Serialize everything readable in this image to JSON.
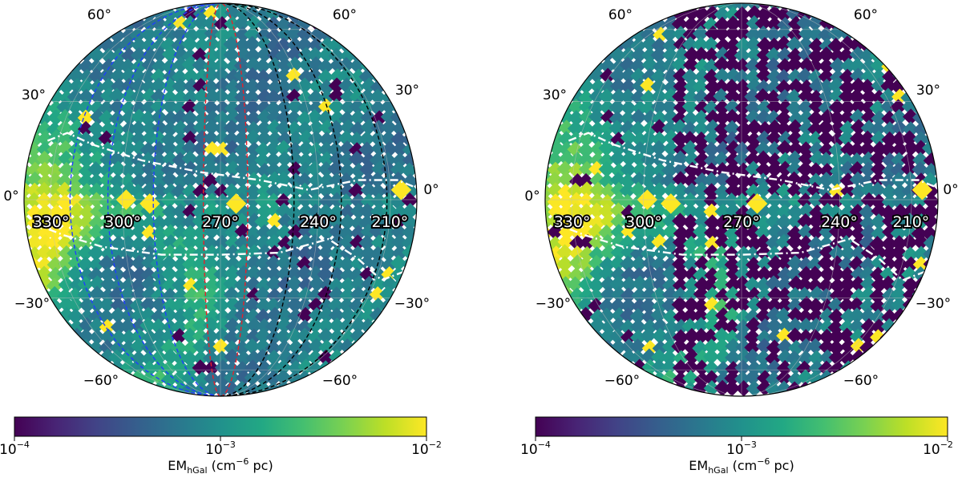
{
  "panels": [
    {
      "id": "left",
      "lat_labels": {
        "p60": "60°",
        "p30": "30°",
        "z": "0°",
        "m30": "−30°",
        "m60": "−60°"
      },
      "lon_labels": [
        "330°",
        "300°",
        "270°",
        "240°",
        "210°"
      ],
      "has_meridians": true,
      "zero_fraction": 0.05,
      "colorbar": {
        "ticks": [
          "10",
          "10",
          "10"
        ],
        "exponents": [
          "−4",
          "−3",
          "−2"
        ],
        "label_main": "EM",
        "label_sub": "hGal",
        "label_units_a": " (cm",
        "label_units_sup": "−6",
        "label_units_b": " pc)"
      }
    },
    {
      "id": "right",
      "lat_labels": {
        "p60": "60°",
        "p30": "30°",
        "z": "0°",
        "m30": "−30°",
        "m60": "−60°"
      },
      "lon_labels": [
        "330°",
        "300°",
        "270°",
        "240°",
        "210°"
      ],
      "has_meridians": false,
      "zero_fraction": 0.5,
      "colorbar": {
        "ticks": [
          "10",
          "10",
          "10"
        ],
        "exponents": [
          "−4",
          "−3",
          "−2"
        ],
        "label_main": "EM",
        "label_sub": "hGal",
        "label_units_a": " (cm",
        "label_units_sup": "−6",
        "label_units_b": " pc)"
      }
    }
  ],
  "colormap": "viridis",
  "colormap_range": [
    "1e-4",
    "1e-2"
  ],
  "colors": {
    "meridian_blue": "#1f3fff",
    "meridian_red": "#e8202a",
    "meridian_black": "#000000",
    "contour": "#ffffff"
  }
}
